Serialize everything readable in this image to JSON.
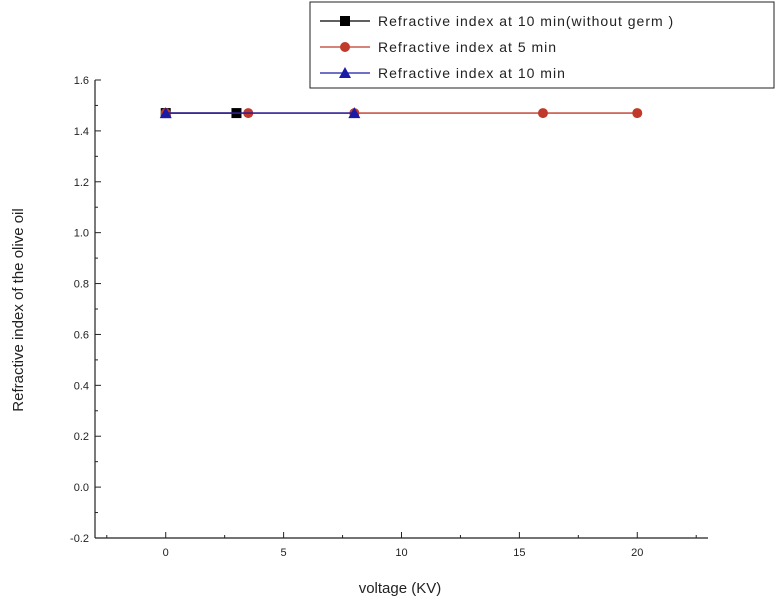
{
  "chart_data": {
    "type": "line",
    "xlabel": "voltage (KV)",
    "ylabel": "Refractive index of the olive oil",
    "xlim": [
      -3,
      23
    ],
    "ylim": [
      -0.2,
      1.6
    ],
    "x_ticks": [
      0,
      5,
      10,
      15,
      20
    ],
    "x_tick_labels": [
      "0",
      "5",
      "10",
      "15",
      "20"
    ],
    "y_ticks": [
      -0.2,
      0.0,
      0.2,
      0.4,
      0.6,
      0.8,
      1.0,
      1.2,
      1.4,
      1.6
    ],
    "y_tick_labels": [
      "-0.2",
      "0.0",
      "0.2",
      "0.4",
      "0.6",
      "0.8",
      "1.0",
      "1.2",
      "1.4",
      "1.6"
    ],
    "grid": false,
    "legend_position": "top-right",
    "series": [
      {
        "name": "Refractive index  at 10 min(without germ )",
        "color": "#000000",
        "marker": "square",
        "x": [
          0,
          3
        ],
        "y": [
          1.47,
          1.47
        ]
      },
      {
        "name": "Refractive index at 5 min",
        "color": "#c0392b",
        "marker": "circle",
        "x": [
          0,
          3.5,
          8,
          16,
          20
        ],
        "y": [
          1.47,
          1.47,
          1.47,
          1.47,
          1.47
        ]
      },
      {
        "name": "Refractive index at 10 min",
        "color": "#1a1aa6",
        "marker": "triangle",
        "x": [
          0,
          8
        ],
        "y": [
          1.47,
          1.47
        ]
      }
    ]
  }
}
